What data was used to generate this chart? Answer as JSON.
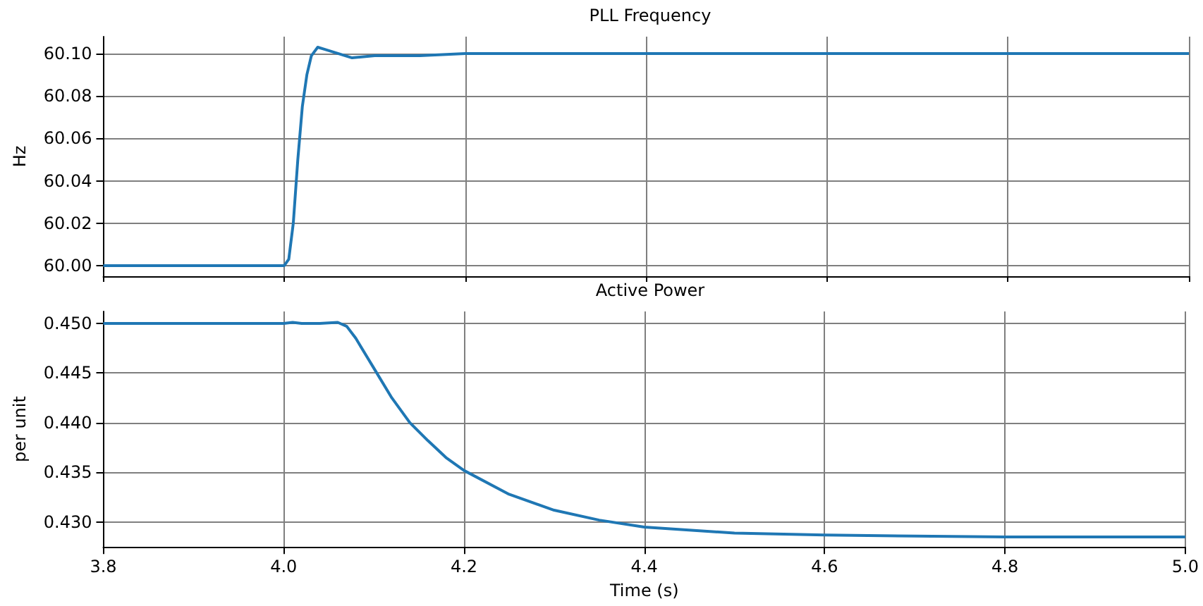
{
  "chart_data": [
    {
      "type": "line",
      "title": "PLL Frequency",
      "ylabel": "Hz",
      "x": [
        3.8,
        4.0,
        4.005,
        4.01,
        4.015,
        4.02,
        4.025,
        4.03,
        4.037,
        4.045,
        4.06,
        4.075,
        4.1,
        4.15,
        4.2,
        4.3,
        5.0
      ],
      "series": [
        {
          "color": "#1f77b4",
          "values": [
            60.0,
            60.0,
            60.003,
            60.02,
            60.05,
            60.075,
            60.09,
            60.099,
            60.103,
            60.102,
            60.1,
            60.098,
            60.099,
            60.099,
            60.1,
            60.1,
            60.1
          ]
        }
      ],
      "xlim": [
        3.8,
        5.0
      ],
      "xticks": [
        3.8,
        4.0,
        4.2,
        4.4,
        4.6,
        4.8,
        5.0
      ],
      "ylim": [
        59.995,
        60.108
      ],
      "yticks": [
        {
          "value": 60.0,
          "label": "60.00"
        },
        {
          "value": 60.02,
          "label": "60.02"
        },
        {
          "value": 60.04,
          "label": "60.04"
        },
        {
          "value": 60.06,
          "label": "60.06"
        },
        {
          "value": 60.08,
          "label": "60.08"
        },
        {
          "value": 60.1,
          "label": "60.10"
        }
      ],
      "tick_labels": "y",
      "grid": true,
      "marker": "none",
      "line_style": "solid"
    },
    {
      "type": "line",
      "title": "Active Power",
      "xlabel": "Time (s)",
      "ylabel": "per unit",
      "x": [
        3.8,
        4.0,
        4.01,
        4.02,
        4.04,
        4.06,
        4.07,
        4.08,
        4.1,
        4.12,
        4.14,
        4.16,
        4.18,
        4.2,
        4.25,
        4.3,
        4.35,
        4.4,
        4.5,
        4.6,
        4.7,
        4.8,
        5.0
      ],
      "series": [
        {
          "color": "#1f77b4",
          "values": [
            0.45,
            0.45,
            0.4501,
            0.45,
            0.45,
            0.4501,
            0.4497,
            0.4485,
            0.4455,
            0.4425,
            0.44,
            0.4382,
            0.4365,
            0.4352,
            0.4328,
            0.4312,
            0.4302,
            0.4295,
            0.4289,
            0.4287,
            0.4286,
            0.4285,
            0.4285
          ]
        }
      ],
      "xlim": [
        3.8,
        5.0
      ],
      "xticks": [
        3.8,
        {
          "value": 4.0,
          "label": "4.0"
        },
        4.2,
        4.4,
        4.6,
        4.8,
        {
          "value": 5.0,
          "label": "5.0"
        }
      ],
      "ylim": [
        0.4275,
        0.4512
      ],
      "yticks": [
        {
          "value": 0.43,
          "label": "0.430"
        },
        {
          "value": 0.435,
          "label": "0.435"
        },
        {
          "value": 0.44,
          "label": "0.440"
        },
        {
          "value": 0.445,
          "label": "0.445"
        },
        {
          "value": 0.45,
          "label": "0.450"
        }
      ],
      "grid": true,
      "marker": "none",
      "line_style": "solid"
    }
  ]
}
